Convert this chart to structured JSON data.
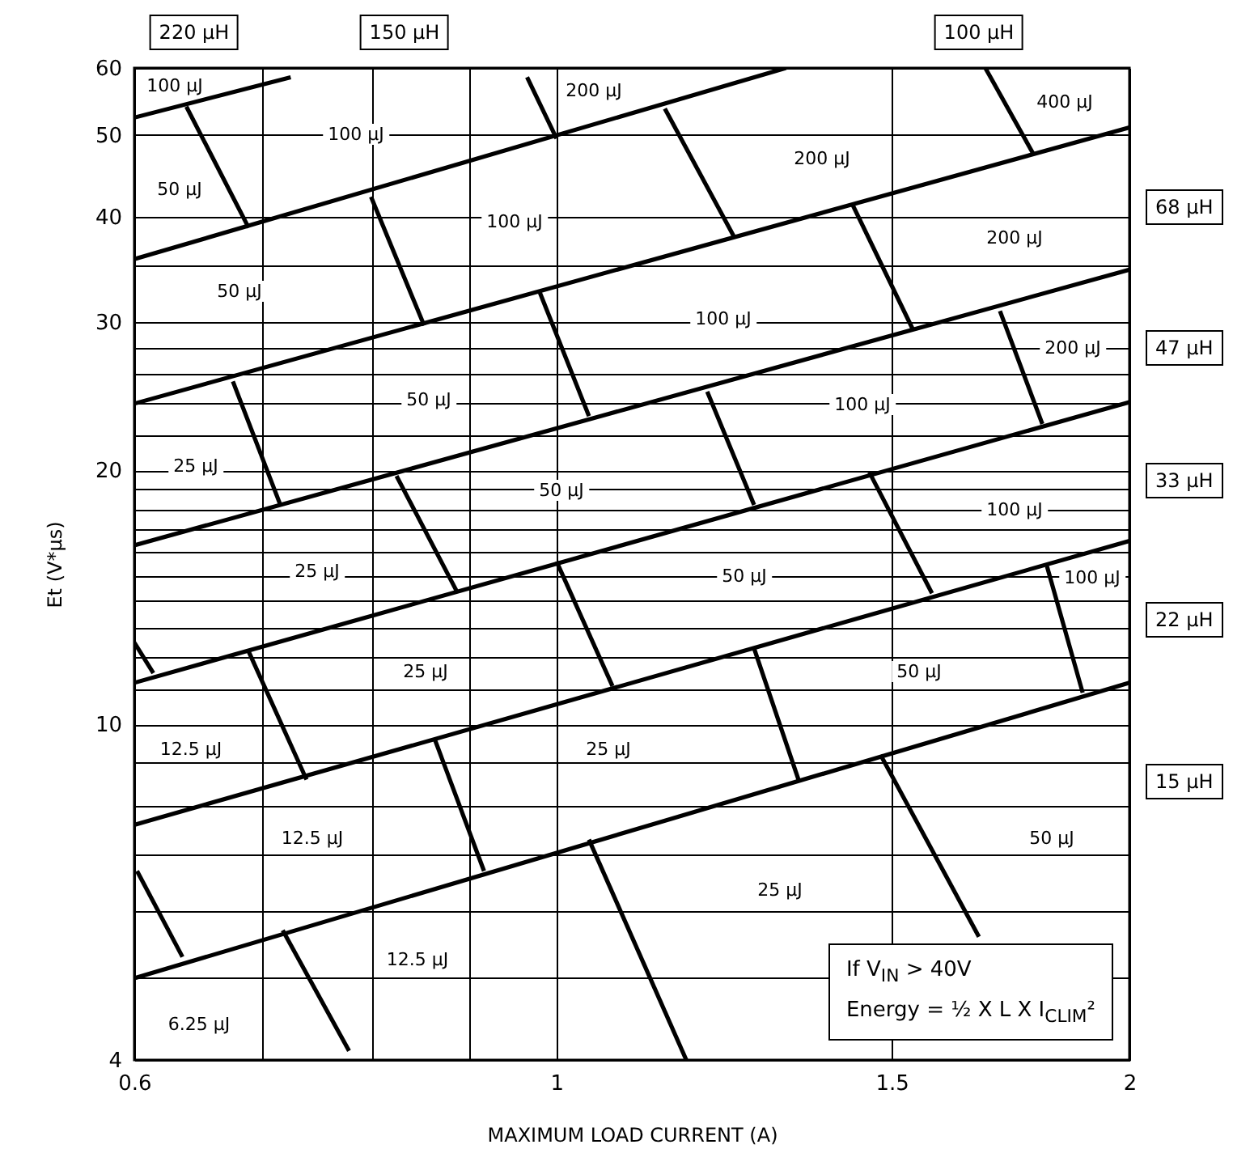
{
  "chart_data": {
    "type": "line",
    "xlabel": "MAXIMUM LOAD CURRENT (A)",
    "ylabel": "Et (V*μs)",
    "log": "xy",
    "grid": true,
    "xlim": [
      0.6,
      2
    ],
    "ylim": [
      4,
      60
    ],
    "xticks": [
      0.6,
      {
        "value": 0.7,
        "label": null
      },
      {
        "value": 0.8,
        "label": null
      },
      {
        "value": 0.9,
        "label": null
      },
      1,
      1.5,
      2
    ],
    "yticks": [
      4,
      {
        "value": 5,
        "label": null
      },
      {
        "value": 6,
        "label": null
      },
      {
        "value": 7,
        "label": null
      },
      {
        "value": 8,
        "label": null
      },
      {
        "value": 9,
        "label": null
      },
      10,
      {
        "value": 11,
        "label": null
      },
      {
        "value": 12,
        "label": null
      },
      {
        "value": 13,
        "label": null
      },
      {
        "value": 14,
        "label": null
      },
      {
        "value": 15,
        "label": null
      },
      {
        "value": 16,
        "label": null
      },
      {
        "value": 17,
        "label": null
      },
      {
        "value": 18,
        "label": null
      },
      {
        "value": 19,
        "label": null
      },
      20,
      {
        "value": 22,
        "label": null
      },
      {
        "value": 24,
        "label": null
      },
      {
        "value": 26,
        "label": null
      },
      {
        "value": 28,
        "label": null
      },
      30,
      {
        "value": 35,
        "label": null
      },
      40,
      50,
      60
    ],
    "series": [
      {
        "color": "#000000",
        "x": [
          0.6,
          0.725
        ],
        "values": [
          52.4,
          58.5
        ]
      },
      {
        "color": "#000000",
        "x": [
          0.6,
          1.32
        ],
        "values": [
          35.6,
          60
        ]
      },
      {
        "color": "#000000",
        "x": [
          0.6,
          2
        ],
        "values": [
          24,
          51
        ]
      },
      {
        "color": "#000000",
        "x": [
          0.6,
          2
        ],
        "values": [
          16.3,
          34.6
        ]
      },
      {
        "color": "#000000",
        "x": [
          0.6,
          2
        ],
        "values": [
          11.2,
          24.1
        ]
      },
      {
        "color": "#000000",
        "x": [
          0.6,
          2
        ],
        "values": [
          7.6,
          16.5
        ]
      },
      {
        "color": "#000000",
        "x": [
          0.6,
          2
        ],
        "values": [
          5.0,
          11.2
        ]
      },
      {
        "color": "#000000",
        "x": [
          0.639,
          0.689
        ],
        "values": [
          54.0,
          38.8
        ]
      },
      {
        "color": "#000000",
        "x": [
          0.799,
          0.852
        ],
        "values": [
          42.2,
          29.7
        ]
      },
      {
        "color": "#000000",
        "x": [
          0.965,
          1.0
        ],
        "values": [
          58.5,
          49.5
        ]
      },
      {
        "color": "#000000",
        "x": [
          0.98,
          1.04
        ],
        "values": [
          32.5,
          23.2
        ]
      },
      {
        "color": "#000000",
        "x": [
          1.14,
          1.24
        ],
        "values": [
          53.7,
          37.8
        ]
      },
      {
        "color": "#000000",
        "x": [
          1.68,
          1.78
        ],
        "values": [
          60,
          47.5
        ]
      },
      {
        "color": "#000000",
        "x": [
          1.43,
          1.54
        ],
        "values": [
          41.4,
          29.3
        ]
      },
      {
        "color": "#000000",
        "x": [
          1.71,
          1.8
        ],
        "values": [
          30.9,
          22.7
        ]
      },
      {
        "color": "#000000",
        "x": [
          1.2,
          1.27
        ],
        "values": [
          24.8,
          18.2
        ]
      },
      {
        "color": "#000000",
        "x": [
          0.676,
          0.716
        ],
        "values": [
          25.5,
          18.2
        ]
      },
      {
        "color": "#000000",
        "x": [
          0.824,
          0.886
        ],
        "values": [
          19.7,
          14.4
        ]
      },
      {
        "color": "#000000",
        "x": [
          1.0,
          1.07
        ],
        "values": [
          15.6,
          11.1
        ]
      },
      {
        "color": "#000000",
        "x": [
          0.6,
          0.614
        ],
        "values": [
          12.5,
          11.5
        ]
      },
      {
        "color": "#000000",
        "x": [
          0.689,
          0.739
        ],
        "values": [
          12.2,
          8.6
        ]
      },
      {
        "color": "#000000",
        "x": [
          0.863,
          0.916
        ],
        "values": [
          9.6,
          6.7
        ]
      },
      {
        "color": "#000000",
        "x": [
          1.46,
          1.575
        ],
        "values": [
          19.9,
          14.3
        ]
      },
      {
        "color": "#000000",
        "x": [
          1.81,
          1.89
        ],
        "values": [
          15.4,
          10.9
        ]
      },
      {
        "color": "#000000",
        "x": [
          1.27,
          1.34
        ],
        "values": [
          12.3,
          8.6
        ]
      },
      {
        "color": "#000000",
        "x": [
          1.48,
          1.667
        ],
        "values": [
          9.2,
          5.6
        ]
      },
      {
        "color": "#000000",
        "x": [
          0.602,
          0.636
        ],
        "values": [
          6.7,
          5.3
        ]
      },
      {
        "color": "#000000",
        "x": [
          0.718,
          0.778
        ],
        "values": [
          5.7,
          4.1
        ]
      },
      {
        "color": "#000000",
        "x": [
          1.04,
          1.17
        ],
        "values": [
          7.3,
          4.0
        ]
      }
    ],
    "annotations": [
      "100 μJ",
      "100 μJ",
      "50 μJ",
      "100 μJ",
      "50 μJ",
      "200 μJ",
      "400 μJ",
      "200 μJ",
      "200 μJ",
      "100 μJ",
      "200 μJ",
      "50 μJ",
      "100 μJ",
      "25 μJ",
      "50 μJ",
      "100 μJ",
      "25 μJ",
      "50 μJ",
      "100 μJ",
      "25 μJ",
      "50 μJ",
      "12.5 μJ",
      "25 μJ",
      "12.5 μJ",
      "50 μJ",
      "25 μJ",
      "12.5 μJ",
      "6.25 μJ",
      "220 μH",
      "150 μH",
      "100 μH",
      "68 μH",
      "47 μH",
      "33 μH",
      "22 μH",
      "15 μH",
      "If V$_{IN}$ > 40V",
      "Energy = ½ X L X I$_{CLIM}$²"
    ]
  }
}
